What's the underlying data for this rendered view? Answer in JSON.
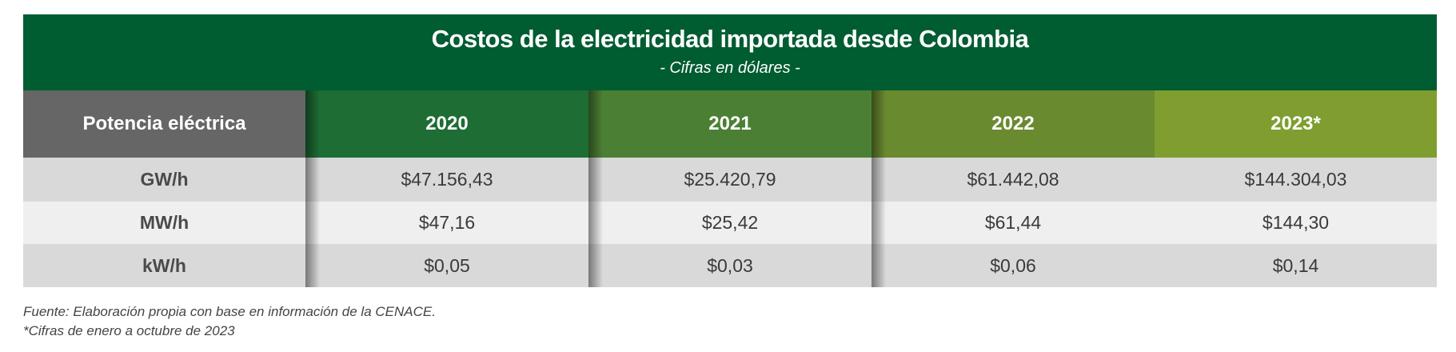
{
  "header": {
    "title": "Costos de la electricidad importada desde Colombia",
    "subtitle": "-  Cifras en dólares -"
  },
  "table": {
    "columns": [
      {
        "label": "Potencia eléctrica",
        "color": "#666666"
      },
      {
        "label": "2020",
        "color": "#1d6d34"
      },
      {
        "label": "2021",
        "color": "#4b8034"
      },
      {
        "label": "2022",
        "color": "#6a8a30"
      },
      {
        "label": "2023*",
        "color": "#7f9e2f"
      }
    ],
    "rows": [
      {
        "unit": "GW/h",
        "values": [
          "$47.156,43",
          "$25.420,79",
          "$61.442,08",
          "$144.304,03"
        ]
      },
      {
        "unit": "MW/h",
        "values": [
          "$47,16",
          "$25,42",
          "$61,44",
          "$144,30"
        ]
      },
      {
        "unit": "kW/h",
        "values": [
          "$0,05",
          "$0,03",
          "$0,06",
          "$0,14"
        ]
      }
    ]
  },
  "footnotes": {
    "source": "Fuente:  Elaboración propia con base en información de la CENACE.",
    "note": "*Cifras de enero a octubre de 2023"
  }
}
